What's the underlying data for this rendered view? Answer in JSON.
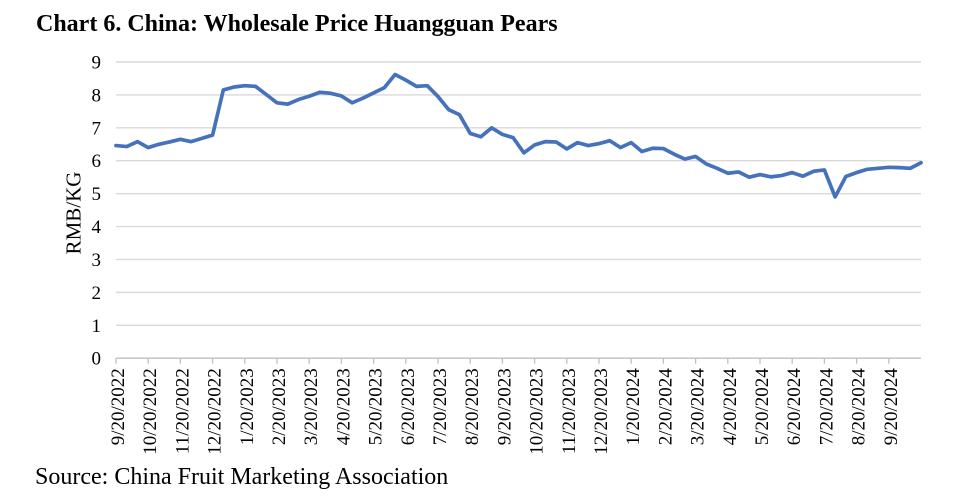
{
  "chart": {
    "title": "Chart 6. China: Wholesale Price Huangguan Pears"
  },
  "source": {
    "text": "Source: China Fruit Marketing Association"
  },
  "chart_data": {
    "type": "line",
    "title": "Chart 6. China: Wholesale Price Huangguan Pears",
    "xlabel": "",
    "ylabel": "RMB/KG",
    "source": "Source: China Fruit Marketing Association",
    "ylim": [
      0,
      9
    ],
    "yticks": [
      0,
      1,
      2,
      3,
      4,
      5,
      6,
      7,
      8,
      9
    ],
    "grid": "horizontal",
    "legend": "none",
    "line_color": "#4672BC",
    "x_tick_labels": [
      "9/20/2022",
      "10/20/2022",
      "11/20/2022",
      "12/20/2022",
      "1/20/2023",
      "2/20/2023",
      "3/20/2023",
      "4/20/2023",
      "5/20/2023",
      "6/20/2023",
      "7/20/2023",
      "8/20/2023",
      "9/20/2023",
      "10/20/2023",
      "11/20/2023",
      "12/20/2023",
      "1/20/2024",
      "2/20/2024",
      "3/20/2024",
      "4/20/2024",
      "5/20/2024",
      "6/20/2024",
      "7/20/2024",
      "8/20/2024",
      "9/20/2024"
    ],
    "series": [
      {
        "name": "Wholesale price Huangguan pears (RMB/KG)",
        "x": [
          "9/20/2022",
          "9/30/2022",
          "10/10/2022",
          "10/20/2022",
          "10/30/2022",
          "11/10/2022",
          "11/20/2022",
          "11/30/2022",
          "12/10/2022",
          "12/20/2022",
          "12/30/2022",
          "1/10/2023",
          "1/20/2023",
          "1/30/2023",
          "2/10/2023",
          "2/20/2023",
          "2/28/2023",
          "3/10/2023",
          "3/20/2023",
          "3/30/2023",
          "4/10/2023",
          "4/20/2023",
          "4/30/2023",
          "5/10/2023",
          "5/20/2023",
          "5/30/2023",
          "6/10/2023",
          "6/20/2023",
          "6/30/2023",
          "7/10/2023",
          "7/20/2023",
          "7/30/2023",
          "8/10/2023",
          "8/20/2023",
          "8/30/2023",
          "9/10/2023",
          "9/20/2023",
          "9/30/2023",
          "10/10/2023",
          "10/20/2023",
          "10/30/2023",
          "11/10/2023",
          "11/20/2023",
          "11/30/2023",
          "12/10/2023",
          "12/20/2023",
          "12/30/2023",
          "1/10/2024",
          "1/20/2024",
          "1/30/2024",
          "2/10/2024",
          "2/20/2024",
          "2/29/2024",
          "3/10/2024",
          "3/20/2024",
          "3/30/2024",
          "4/10/2024",
          "4/20/2024",
          "4/30/2024",
          "5/10/2024",
          "5/20/2024",
          "5/30/2024",
          "6/10/2024",
          "6/20/2024",
          "6/30/2024",
          "7/10/2024",
          "7/20/2024",
          "7/30/2024",
          "8/10/2024",
          "8/20/2024",
          "8/30/2024",
          "9/10/2024",
          "9/20/2024",
          "9/30/2024",
          "10/10/2024",
          "10/20/2024"
        ],
        "values": [
          6.46,
          6.43,
          6.58,
          6.4,
          6.5,
          6.57,
          6.65,
          6.58,
          6.68,
          6.78,
          8.15,
          8.24,
          8.28,
          8.26,
          8.01,
          7.76,
          7.72,
          7.86,
          7.96,
          8.08,
          8.05,
          7.97,
          7.76,
          7.9,
          8.06,
          8.22,
          8.62,
          8.45,
          8.26,
          8.28,
          7.95,
          7.55,
          7.4,
          6.83,
          6.73,
          7.0,
          6.8,
          6.7,
          6.24,
          6.48,
          6.58,
          6.57,
          6.36,
          6.55,
          6.46,
          6.52,
          6.61,
          6.4,
          6.55,
          6.28,
          6.38,
          6.37,
          6.2,
          6.05,
          6.13,
          5.9,
          5.77,
          5.62,
          5.66,
          5.5,
          5.58,
          5.51,
          5.55,
          5.64,
          5.53,
          5.68,
          5.72,
          4.9,
          5.52,
          5.64,
          5.74,
          5.77,
          5.8,
          5.79,
          5.77,
          5.94
        ]
      }
    ]
  },
  "layout_hints": {
    "x_labels_rotation_deg": -90,
    "x_tick_label_interval_points": 3
  }
}
